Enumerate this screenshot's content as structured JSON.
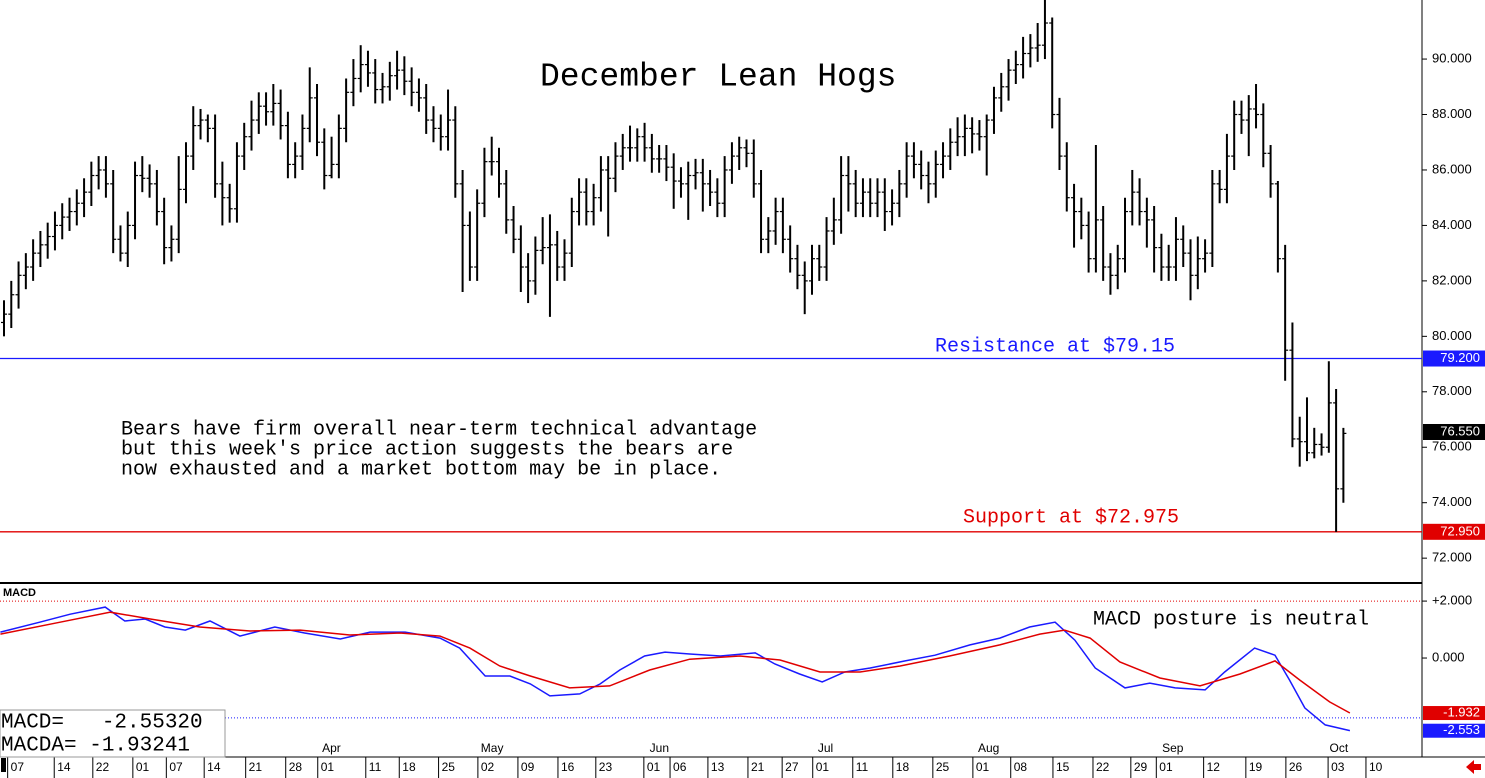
{
  "chart_data": [
    {
      "type": "ohlc",
      "title": "December Lean Hogs",
      "color": "#000000",
      "xlim": [
        -0.55,
        194.8
      ],
      "ylim": [
        71.14,
        92.13
      ],
      "yticks": [
        {
          "value": 72,
          "label": "72.000"
        },
        {
          "value": 74,
          "label": "74.000"
        },
        {
          "value": 76,
          "label": "76.000"
        },
        {
          "value": 78,
          "label": "78.000"
        },
        {
          "value": 80,
          "label": "80.000"
        },
        {
          "value": 82,
          "label": "82.000"
        },
        {
          "value": 84,
          "label": "84.000"
        },
        {
          "value": 86,
          "label": "86.000"
        },
        {
          "value": 88,
          "label": "88.000"
        },
        {
          "value": 90,
          "label": "90.000"
        }
      ],
      "xticks": [
        {
          "value": 0.5,
          "label": "07"
        },
        {
          "value": 6.9,
          "label": "14"
        },
        {
          "value": 12.2,
          "label": "22"
        },
        {
          "value": 17.7,
          "label": "01"
        },
        {
          "value": 22.3,
          "label": "07"
        },
        {
          "value": 27.5,
          "label": "14"
        },
        {
          "value": 33.2,
          "label": "21"
        },
        {
          "value": 38.7,
          "label": "28"
        },
        {
          "value": 43.1,
          "label": "01"
        },
        {
          "value": 49.7,
          "label": "11"
        },
        {
          "value": 54.3,
          "label": "18"
        },
        {
          "value": 59.7,
          "label": "25"
        },
        {
          "value": 65.1,
          "label": "02"
        },
        {
          "value": 70.6,
          "label": "09"
        },
        {
          "value": 76.1,
          "label": "16"
        },
        {
          "value": 81.3,
          "label": "23"
        },
        {
          "value": 87.9,
          "label": "01"
        },
        {
          "value": 91.5,
          "label": "06"
        },
        {
          "value": 96.7,
          "label": "13"
        },
        {
          "value": 102.2,
          "label": "21"
        },
        {
          "value": 106.9,
          "label": "27"
        },
        {
          "value": 111.1,
          "label": "01"
        },
        {
          "value": 116.6,
          "label": "11"
        },
        {
          "value": 122.1,
          "label": "18"
        },
        {
          "value": 127.6,
          "label": "25"
        },
        {
          "value": 133.1,
          "label": "01"
        },
        {
          "value": 138.3,
          "label": "08"
        },
        {
          "value": 144.1,
          "label": "15"
        },
        {
          "value": 149.6,
          "label": "22"
        },
        {
          "value": 154.8,
          "label": "29"
        },
        {
          "value": 158.3,
          "label": "01"
        },
        {
          "value": 164.8,
          "label": "12"
        },
        {
          "value": 170.6,
          "label": "19"
        },
        {
          "value": 176.1,
          "label": "26"
        },
        {
          "value": 181.9,
          "label": "03"
        },
        {
          "value": 187.1,
          "label": "10"
        }
      ],
      "month_labels": [
        {
          "value": 43.7,
          "label": "Apr"
        },
        {
          "value": 65.5,
          "label": "May"
        },
        {
          "value": 88.7,
          "label": "Jun"
        },
        {
          "value": 111.8,
          "label": "Jul"
        },
        {
          "value": 133.8,
          "label": "Aug"
        },
        {
          "value": 159.1,
          "label": "Sep"
        },
        {
          "value": 182.1,
          "label": "Oct"
        }
      ],
      "badges": [
        {
          "value": 79.2,
          "label": "79.200",
          "color": "#1a1aff",
          "line": true
        },
        {
          "value": 76.55,
          "label": "76.550",
          "color": "#000000",
          "line": false
        },
        {
          "value": 72.95,
          "label": "72.950",
          "color": "#e00000",
          "line": true
        }
      ],
      "annotations": [
        {
          "text": "Resistance at $79.15",
          "color": "#1a1aff"
        },
        {
          "text": "Support at $72.975",
          "color": "#e00000"
        },
        {
          "text": "Bears have firm overall near-term technical advantage",
          "color": "#000000"
        },
        {
          "text": "but this week's price action suggests the bears are",
          "color": "#000000"
        },
        {
          "text": "now exhausted and a market bottom may be in place.",
          "color": "#000000"
        }
      ],
      "open": [
        80.5,
        80.8,
        81.5,
        82.2,
        82.5,
        83,
        83.3,
        83.6,
        84,
        84.3,
        84.5,
        84.8,
        85.2,
        85.8,
        86,
        85.5,
        83.5,
        83,
        84,
        85.8,
        85.7,
        85.5,
        84.5,
        83.2,
        83.5,
        85.3,
        86.5,
        87.6,
        87.8,
        87.5,
        85.5,
        85,
        84.6,
        86.5,
        87.2,
        87.8,
        88.3,
        88.1,
        88.4,
        87.6,
        86.2,
        86.5,
        87.5,
        88.6,
        87,
        85.8,
        86.2,
        87.5,
        88.8,
        89.3,
        89.8,
        89.5,
        88.9,
        89,
        89.4,
        89.6,
        89.2,
        88.8,
        88.6,
        87.8,
        87.5,
        87.2,
        87.8,
        85.5,
        84,
        82.5,
        84.8,
        86.3,
        86.3,
        85.5,
        84.2,
        83.5,
        82.5,
        82,
        83.1,
        83.2,
        83.3,
        82.5,
        83,
        84.5,
        85.2,
        84.5,
        85,
        86,
        85.7,
        86.5,
        86.8,
        86.8,
        87.2,
        86.8,
        86.4,
        86.4,
        86.1,
        85.6,
        85.5,
        85.8,
        85.9,
        85.5,
        85.2,
        84.8,
        86,
        86.5,
        86.8,
        86.6,
        85.5,
        83.5,
        83.8,
        84.5,
        83.5,
        82.8,
        82.2,
        82,
        82.8,
        82.5,
        83.8,
        84.2,
        85.8,
        85.5,
        84.8,
        85.2,
        84.8,
        85.2,
        84.5,
        84.8,
        85.5,
        86.5,
        86.2,
        85.8,
        85.5,
        86.2,
        86.5,
        87,
        87.2,
        87.5,
        87.3,
        87.2,
        87.8,
        88.6,
        89,
        89.6,
        89.8,
        90.2,
        90.4,
        90.5,
        91.3,
        88,
        86.5,
        85,
        84.5,
        84,
        82.8,
        84.2,
        82.5,
        82.2,
        82.8,
        84.5,
        85.2,
        84.5,
        84.2,
        83.2,
        82.5,
        82.5,
        83.5,
        83,
        82.2,
        82.8,
        83,
        85.5,
        85.3,
        86.5,
        88,
        87.8,
        88.2,
        88,
        86.6,
        85.5,
        82.8,
        79.5,
        76.3,
        76.2,
        75.8,
        76.1,
        76,
        77.6,
        74.5
      ],
      "high": [
        81.3,
        82.0,
        82.7,
        83.0,
        83.5,
        83.8,
        84.1,
        84.5,
        84.8,
        85.0,
        85.3,
        85.7,
        86.3,
        86.5,
        86.5,
        86.0,
        84.0,
        84.5,
        86.3,
        86.5,
        86.2,
        86.0,
        85.0,
        84.0,
        86.5,
        87.0,
        88.3,
        88.2,
        88.0,
        88.0,
        86.3,
        85.5,
        87.0,
        87.7,
        88.5,
        88.8,
        88.8,
        89.1,
        88.9,
        88.1,
        87.0,
        88.0,
        89.7,
        89.1,
        87.5,
        87.2,
        88.0,
        89.3,
        90.0,
        90.5,
        90.3,
        90.0,
        89.5,
        89.9,
        90.3,
        90.1,
        89.7,
        89.3,
        89.1,
        88.3,
        88.0,
        88.9,
        88.3,
        86.0,
        84.5,
        85.3,
        86.8,
        87.2,
        86.8,
        86.0,
        84.7,
        84.0,
        83.0,
        83.6,
        84.3,
        84.4,
        83.8,
        83.5,
        85.0,
        85.7,
        85.7,
        85.5,
        86.5,
        86.5,
        87.0,
        87.3,
        87.6,
        87.5,
        87.7,
        87.3,
        86.9,
        86.9,
        86.6,
        86.1,
        86.3,
        86.4,
        86.4,
        86.0,
        85.7,
        86.5,
        87.0,
        87.2,
        87.1,
        87.1,
        86.0,
        84.3,
        85.0,
        85.0,
        84.0,
        83.3,
        82.7,
        83.3,
        83.3,
        84.3,
        85.0,
        86.5,
        86.5,
        86.0,
        85.7,
        85.7,
        85.7,
        85.7,
        85.3,
        86.0,
        87.0,
        87.0,
        86.7,
        86.3,
        86.7,
        87.0,
        87.5,
        87.9,
        88.0,
        87.9,
        87.8,
        88.0,
        89.0,
        89.5,
        90.0,
        90.3,
        90.8,
        90.9,
        91.3,
        92.2,
        91.5,
        88.6,
        87.0,
        85.5,
        85.0,
        84.5,
        86.9,
        84.7,
        83.0,
        83.3,
        85.0,
        86.0,
        85.7,
        85.0,
        84.7,
        83.7,
        83.3,
        84.3,
        84.0,
        83.5,
        83.6,
        83.5,
        86.0,
        86.0,
        87.3,
        88.5,
        88.5,
        88.7,
        89.1,
        88.4,
        86.9,
        85.6,
        83.3,
        80.5,
        77.1,
        77.8,
        76.7,
        76.5,
        79.1,
        78.1,
        76.7
      ],
      "low": [
        80.0,
        80.3,
        81.0,
        81.7,
        82.0,
        82.5,
        82.8,
        83.1,
        83.5,
        83.8,
        84.0,
        84.3,
        84.7,
        85.3,
        85.0,
        83.0,
        82.7,
        82.5,
        83.5,
        85.2,
        85.0,
        84.0,
        82.6,
        82.7,
        83.0,
        84.8,
        86.0,
        87.1,
        87.0,
        85.0,
        84.0,
        84.1,
        84.1,
        86.0,
        86.7,
        87.3,
        87.6,
        87.6,
        87.1,
        85.7,
        85.7,
        86.0,
        87.0,
        86.5,
        85.3,
        85.7,
        85.7,
        87.0,
        88.3,
        88.8,
        89.0,
        88.4,
        88.4,
        88.5,
        88.9,
        88.7,
        88.3,
        88.1,
        87.3,
        87.0,
        86.7,
        86.7,
        85.0,
        81.6,
        82.0,
        82.0,
        84.3,
        85.8,
        85.0,
        83.7,
        83.0,
        81.6,
        81.2,
        81.5,
        82.6,
        80.7,
        82.0,
        82.0,
        82.5,
        84.0,
        84.0,
        84.0,
        84.5,
        83.6,
        85.2,
        86.0,
        86.3,
        86.3,
        86.3,
        85.9,
        85.9,
        85.6,
        84.6,
        85.0,
        84.2,
        85.3,
        84.5,
        84.7,
        84.3,
        84.3,
        85.5,
        86.0,
        86.1,
        85.0,
        83.0,
        83.0,
        83.3,
        83.0,
        82.3,
        81.7,
        80.8,
        81.5,
        82.0,
        82.0,
        83.3,
        83.7,
        84.5,
        84.3,
        84.3,
        84.3,
        84.3,
        83.8,
        84.0,
        84.3,
        85.0,
        85.7,
        85.3,
        84.8,
        85.0,
        85.7,
        86.0,
        86.5,
        86.5,
        86.6,
        86.7,
        85.8,
        87.3,
        88.1,
        88.5,
        89.1,
        89.3,
        89.7,
        89.9,
        90.0,
        87.5,
        86.0,
        84.5,
        83.2,
        83.5,
        82.3,
        82.3,
        82.0,
        81.5,
        81.7,
        82.3,
        84.0,
        84.0,
        83.2,
        82.3,
        82.0,
        82.0,
        82.0,
        82.5,
        81.3,
        81.7,
        82.3,
        82.5,
        84.8,
        84.8,
        86.0,
        87.3,
        86.5,
        87.5,
        86.1,
        85.0,
        82.3,
        78.4,
        76.0,
        75.3,
        75.5,
        75.6,
        75.7,
        75.8,
        72.95,
        74.0
      ],
      "close": [
        80.8,
        81.5,
        82.2,
        82.5,
        83,
        83.3,
        83.6,
        84,
        84.3,
        84.5,
        84.8,
        85.2,
        85.8,
        86,
        85.5,
        83.5,
        83,
        84,
        85.8,
        85.7,
        85.5,
        84.5,
        83.2,
        83.5,
        85.3,
        86.5,
        87.6,
        87.8,
        87.5,
        85.5,
        85,
        84.6,
        86.5,
        87.2,
        87.8,
        88.3,
        88.1,
        88.4,
        87.6,
        86.2,
        86.5,
        87.5,
        88.6,
        87,
        85.8,
        86.2,
        87.5,
        88.8,
        89.3,
        89.8,
        89.5,
        88.9,
        89,
        89.4,
        89.6,
        89.2,
        88.8,
        88.6,
        87.8,
        87.5,
        87.2,
        87.8,
        85.5,
        84,
        82.5,
        84.8,
        86.3,
        86.3,
        85.5,
        84.2,
        83.5,
        82.5,
        82,
        83.1,
        83.2,
        83.3,
        82.5,
        83,
        84.5,
        85.2,
        84.5,
        85,
        86,
        85.7,
        86.5,
        86.8,
        86.8,
        87.2,
        86.8,
        86.4,
        86.4,
        86.1,
        85.6,
        85.5,
        85.8,
        85.9,
        85.5,
        85.2,
        84.8,
        86,
        86.5,
        86.8,
        86.6,
        85.5,
        83.5,
        83.8,
        84.5,
        83.5,
        82.8,
        82.2,
        82,
        82.8,
        82.5,
        83.8,
        84.2,
        85.8,
        85.5,
        84.8,
        85.2,
        84.8,
        85.2,
        84.5,
        84.8,
        85.5,
        86.5,
        86.2,
        85.8,
        85.5,
        86.2,
        86.5,
        87,
        87.2,
        87.5,
        87.3,
        87.2,
        87.8,
        88.6,
        89,
        89.6,
        89.8,
        90.2,
        90.4,
        90.5,
        91.3,
        88,
        86.5,
        85,
        84.5,
        84,
        82.8,
        84.2,
        82.5,
        82.2,
        82.8,
        84.5,
        85.2,
        84.5,
        84.2,
        83.2,
        82.5,
        82.5,
        83.5,
        83,
        82.2,
        82.8,
        83,
        85.5,
        85.3,
        86.5,
        88,
        87.8,
        88.2,
        88,
        86.6,
        85.5,
        82.8,
        79.5,
        76.3,
        76.2,
        75.8,
        76.1,
        76,
        77.6,
        74.5,
        76.5
      ]
    },
    {
      "type": "line",
      "title": "MACD",
      "annotation": "MACD posture is neutral",
      "readouts": [
        "MACD=   -2.55320",
        "MACDA= -1.93241"
      ],
      "xlim": [
        -0.55,
        194.8
      ],
      "ylim": [
        -3.23,
        2.6
      ],
      "yticks": [
        {
          "value": 2,
          "label": "+2.000"
        },
        {
          "value": 0,
          "label": "0.000"
        }
      ],
      "reference_lines": [
        {
          "value": 2,
          "color": "#e00000"
        },
        {
          "value": -2.1,
          "color": "#1a1aff"
        }
      ],
      "badges": [
        {
          "value": -1.932,
          "color": "#e00000"
        },
        {
          "value": -2.553,
          "color": "#1a1aff"
        }
      ],
      "series": [
        {
          "color": "#1a1aff",
          "x": [
            -0.5,
            4.9,
            9.1,
            13.9,
            16.6,
            19.4,
            22.1,
            24.9,
            28.3,
            32.4,
            37.2,
            41.3,
            46.2,
            50.3,
            55.1,
            59.9,
            62.6,
            66.1,
            69.5,
            72.3,
            75,
            79.1,
            81.9,
            84.6,
            88,
            90.8,
            94.2,
            98.4,
            103.2,
            105.9,
            109.3,
            112.4,
            115.5,
            119,
            123.8,
            127.9,
            132.7,
            136.8,
            140.9,
            144.4,
            147.1,
            149.9,
            154,
            157.4,
            160.9,
            165,
            167.7,
            171.8,
            174.6,
            176.6,
            178.7,
            181.5,
            184.9
          ],
          "values": [
            0.91,
            1.26,
            1.54,
            1.79,
            1.3,
            1.37,
            1.09,
            0.98,
            1.3,
            0.77,
            1.09,
            0.88,
            0.67,
            0.91,
            0.91,
            0.7,
            0.35,
            -0.63,
            -0.63,
            -0.91,
            -1.33,
            -1.26,
            -0.91,
            -0.42,
            0.07,
            0.21,
            0.14,
            0.07,
            0.18,
            -0.21,
            -0.56,
            -0.84,
            -0.49,
            -0.35,
            -0.1,
            0.1,
            0.46,
            0.7,
            1.09,
            1.26,
            0.63,
            -0.35,
            -1.05,
            -0.88,
            -1.05,
            -1.12,
            -0.49,
            0.35,
            0.1,
            -0.77,
            -1.75,
            -2.35,
            -2.55
          ]
        },
        {
          "color": "#e00000",
          "x": [
            -0.5,
            7.7,
            14.6,
            20.1,
            26.9,
            33.8,
            40.7,
            47.5,
            54.4,
            59.9,
            64,
            68.1,
            72.3,
            77.7,
            83.2,
            88.7,
            94.2,
            101.1,
            106.6,
            112.1,
            117.6,
            123.1,
            129.9,
            136.8,
            142.3,
            145.7,
            149.2,
            153.3,
            158.8,
            164.3,
            169.8,
            174.6,
            178,
            182.1,
            184.9
          ],
          "values": [
            0.84,
            1.26,
            1.61,
            1.37,
            1.09,
            0.95,
            0.98,
            0.81,
            0.88,
            0.77,
            0.35,
            -0.28,
            -0.63,
            -1.05,
            -0.98,
            -0.42,
            -0.04,
            0.07,
            -0.07,
            -0.49,
            -0.49,
            -0.28,
            0.07,
            0.46,
            0.84,
            0.98,
            0.7,
            -0.14,
            -0.7,
            -0.98,
            -0.56,
            -0.1,
            -0.77,
            -1.54,
            -1.93
          ]
        }
      ]
    }
  ]
}
